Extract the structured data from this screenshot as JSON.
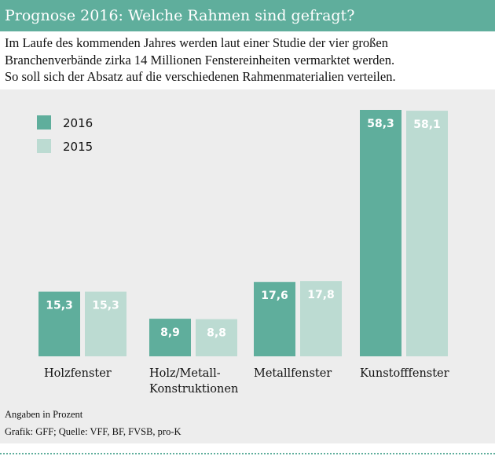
{
  "title": "Prognose 2016: Welche Rahmen sind gefragt?",
  "intro": [
    "Im Laufe des kommenden Jahres werden laut einer Studie der vier großen",
    "Branchenverbände zirka 14 Millionen Fenstereinheiten vermarktet werden.",
    "So soll sich der Absatz auf die verschiedenen Rahmenmaterialien verteilen."
  ],
  "notes": {
    "unit": "Angaben in Prozent",
    "source": "Grafik: GFF; Quelle: VFF, BF, FVSB, pro-K"
  },
  "colors": {
    "s2016": "#5fae9c",
    "s2015": "#bcdbd2"
  },
  "chart_data": {
    "type": "bar",
    "title": "Prognose 2016: Welche Rahmen sind gefragt?",
    "ylabel": "Angaben in Prozent",
    "categories": [
      [
        "Holzfenster"
      ],
      [
        "Holz/Metall-",
        "Konstruktionen"
      ],
      [
        "Metallfenster"
      ],
      [
        "Kunstofffenster"
      ]
    ],
    "series": [
      {
        "name": "2016",
        "values": [
          15.3,
          8.9,
          17.6,
          58.3
        ],
        "labels": [
          "15,3",
          "8,9",
          "17,6",
          "58,3"
        ]
      },
      {
        "name": "2015",
        "values": [
          15.3,
          8.8,
          17.8,
          58.1
        ],
        "labels": [
          "15,3",
          "8,8",
          "17,8",
          "58,1"
        ]
      }
    ],
    "ylim": [
      0,
      58.3
    ],
    "legend": "top-left",
    "grid": false
  }
}
